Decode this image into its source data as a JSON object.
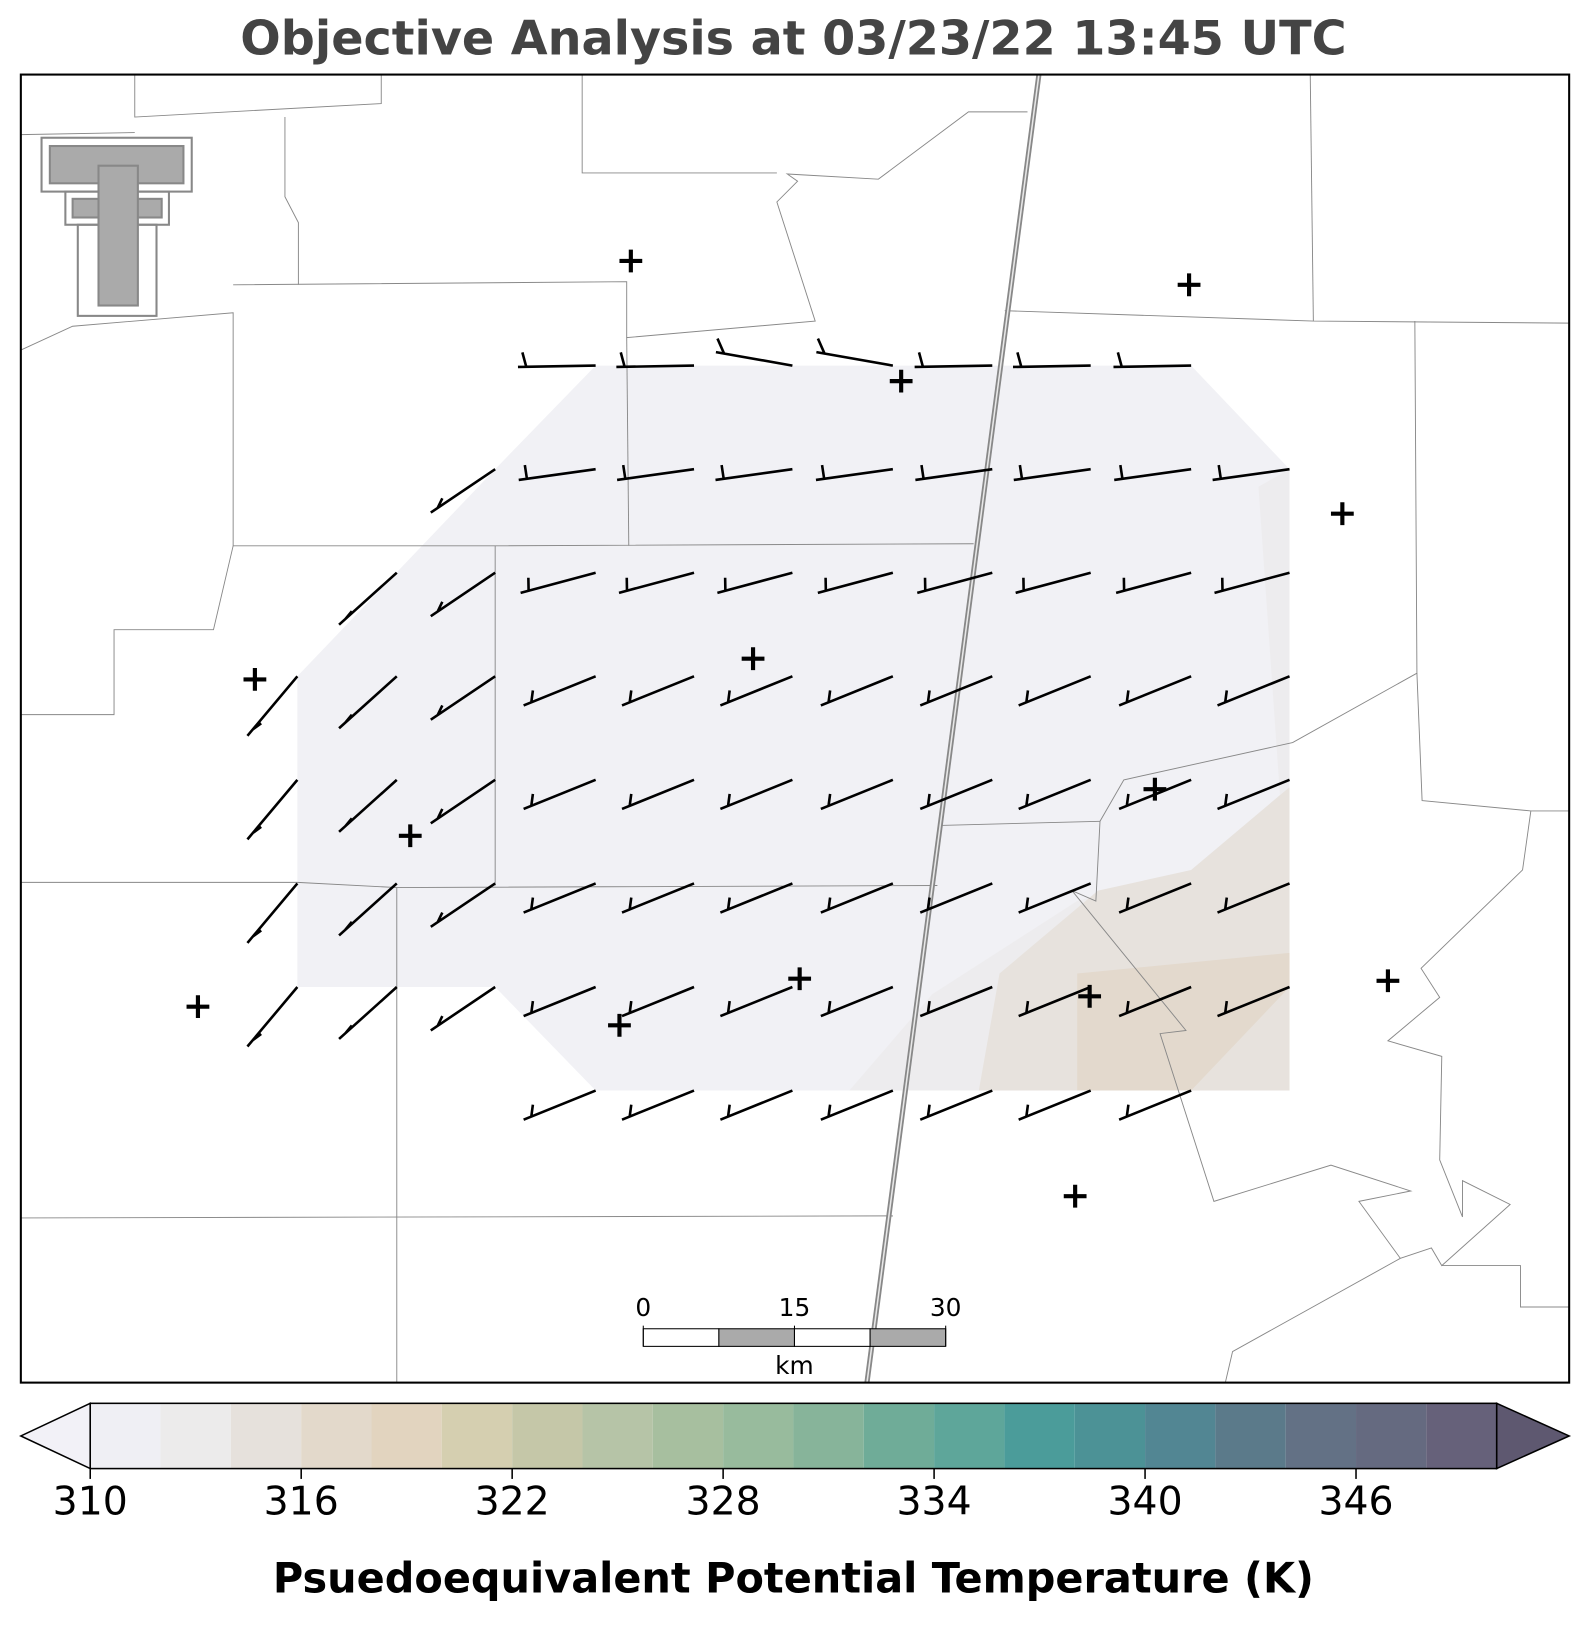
{
  "title": "Objective Analysis at 03/23/22 13:45 UTC",
  "scalebar": {
    "ticks": [
      0,
      15,
      30
    ],
    "unit": "km"
  },
  "colorbar": {
    "label": "Psuedoequivalent Potential Temperature (K)",
    "levels": [
      310,
      312,
      314,
      316,
      318,
      320,
      322,
      324,
      326,
      328,
      330,
      332,
      334,
      336,
      338,
      340,
      342,
      344,
      346,
      348,
      350
    ],
    "ticks": [
      310,
      316,
      322,
      328,
      334,
      340,
      346
    ],
    "colors": [
      "#efeff4",
      "#ecebeb",
      "#e6e1dc",
      "#e3d9cb",
      "#e2d4bf",
      "#d5cfb0",
      "#c5c7a8",
      "#b6c4a7",
      "#a7bf9f",
      "#98bb9d",
      "#87b49a",
      "#6fac98",
      "#5ea69a",
      "#4b9c9a",
      "#4c9296",
      "#528693",
      "#5b7a8a",
      "#637185",
      "#656a80",
      "#66617a"
    ],
    "under_color": "#f2f1f7",
    "over_color": "#5e5870"
  }
}
